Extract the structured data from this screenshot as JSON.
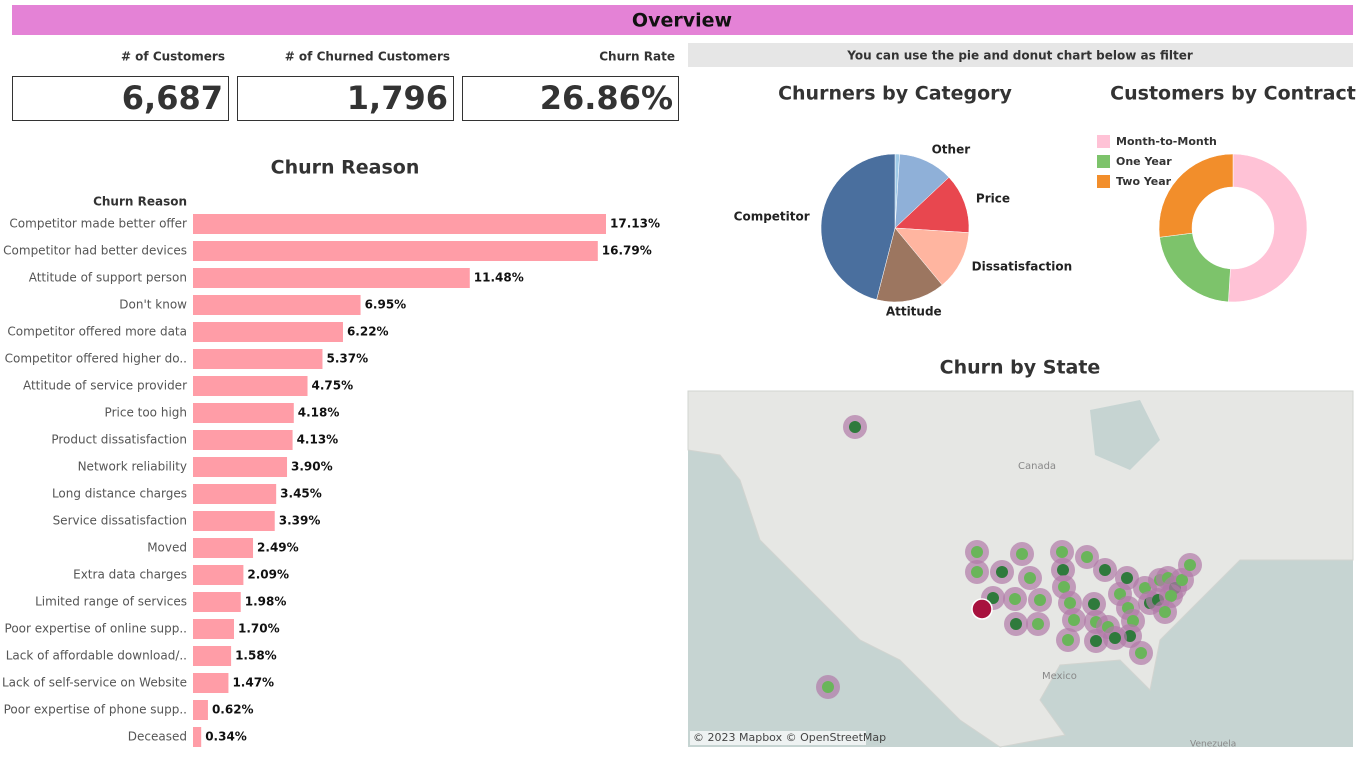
{
  "title": "Overview",
  "kpis": [
    {
      "label": "# of Customers",
      "value": "6,687"
    },
    {
      "label": "# of Churned Customers",
      "value": "1,796"
    },
    {
      "label": "Churn Rate",
      "value": "26.86%"
    }
  ],
  "filter_note": "You can use the pie and donut chart below as filter",
  "chart_data": [
    {
      "type": "bar",
      "title": "Churn Reason",
      "y_label": "Churn Reason",
      "color": "#ff9da7",
      "categories": [
        "Competitor made better offer",
        "Competitor had better devices",
        "Attitude of support person",
        "Don't know",
        "Competitor offered more data",
        "Competitor offered higher do..",
        "Attitude of service provider",
        "Price too high",
        "Product dissatisfaction",
        "Network reliability",
        "Long distance charges",
        "Service dissatisfaction",
        "Moved",
        "Extra data charges",
        "Limited range of services",
        "Poor expertise of online supp..",
        "Lack of affordable download/..",
        "Lack of self-service on Website",
        "Poor expertise of phone supp..",
        "Deceased"
      ],
      "values": [
        17.13,
        16.79,
        11.48,
        6.95,
        6.22,
        5.37,
        4.75,
        4.18,
        4.13,
        3.9,
        3.45,
        3.39,
        2.49,
        2.09,
        1.98,
        1.7,
        1.58,
        1.47,
        0.62,
        0.34
      ],
      "value_labels": [
        "17.13%",
        "16.79%",
        "11.48%",
        "6.95%",
        "6.22%",
        "5.37%",
        "4.75%",
        "4.18%",
        "4.13%",
        "3.90%",
        "3.45%",
        "3.39%",
        "2.49%",
        "2.09%",
        "1.98%",
        "1.70%",
        "1.58%",
        "1.47%",
        "0.62%",
        "0.34%"
      ]
    },
    {
      "type": "pie",
      "title": "Churners by Category",
      "categories": [
        null,
        "Other",
        "Price",
        "Dissatisfaction",
        "Attitude",
        "Competitor"
      ],
      "values": [
        1,
        12,
        13,
        13,
        15,
        46
      ],
      "colors": [
        "#a0cbe8",
        "#8fb0d8",
        "#e8474f",
        "#ffb5a0",
        "#9c7660",
        "#4a6f9e"
      ]
    },
    {
      "type": "donut",
      "title": "Customers by Contract",
      "legend": "top-left",
      "categories": [
        "Month-to-Month",
        "One Year",
        "Two Year"
      ],
      "values": [
        51,
        22,
        27
      ],
      "colors": [
        "#ffc2d6",
        "#7dc36b",
        "#f28e2b"
      ]
    }
  ],
  "map": {
    "title": "Churn by State",
    "places": [
      "Canada",
      "Mexico",
      "Venezuela"
    ],
    "attribution": "© 2023 Mapbox © OpenStreetMap"
  }
}
